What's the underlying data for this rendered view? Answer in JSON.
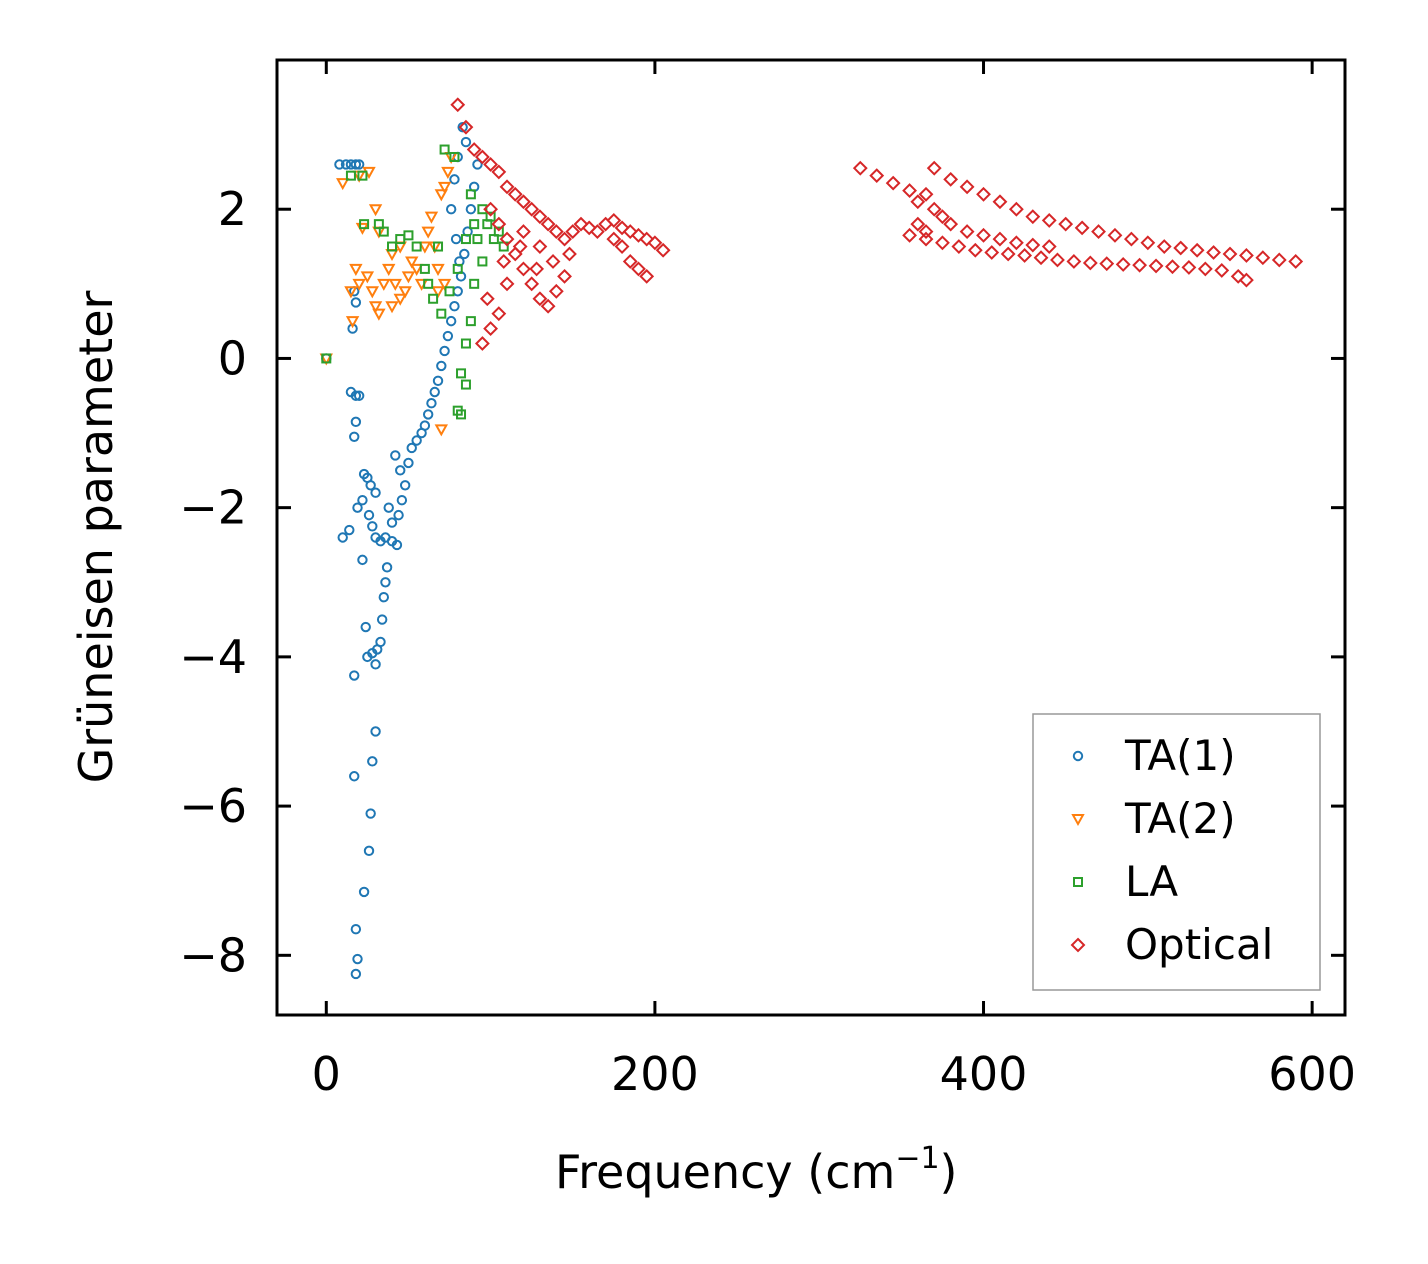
{
  "chart_data": {
    "type": "scatter",
    "title": "",
    "xlabel": "Frequency (cm",
    "xlabel_sup": "−1",
    "xlabel_close": ")",
    "ylabel": "Grüneisen parameter",
    "xlim": [
      -30,
      620
    ],
    "ylim": [
      -8.8,
      4.0
    ],
    "xticks": [
      0,
      200,
      400,
      600
    ],
    "yticks": [
      2,
      0,
      -2,
      -4,
      -6,
      -8
    ],
    "xtick_labels": [
      "0",
      "200",
      "400",
      "600"
    ],
    "ytick_labels": [
      "2",
      "0",
      "−2",
      "−4",
      "−6",
      "−8"
    ],
    "legend_position": "lower-right",
    "series": [
      {
        "name": "TA(1)",
        "marker": "circle",
        "color": "#1f77b4",
        "points": [
          [
            0,
            0
          ],
          [
            8,
            2.6
          ],
          [
            12,
            2.6
          ],
          [
            15,
            2.6
          ],
          [
            18,
            2.6
          ],
          [
            20,
            2.6
          ],
          [
            17,
            0.9
          ],
          [
            18,
            0.75
          ],
          [
            16,
            0.4
          ],
          [
            15,
            -0.45
          ],
          [
            18,
            -0.5
          ],
          [
            20,
            -0.5
          ],
          [
            18,
            -0.85
          ],
          [
            17,
            -1.05
          ],
          [
            19,
            -2.0
          ],
          [
            14,
            -2.3
          ],
          [
            10,
            -2.4
          ],
          [
            22,
            -1.9
          ],
          [
            23,
            -1.55
          ],
          [
            25,
            -1.6
          ],
          [
            27,
            -1.7
          ],
          [
            30,
            -1.8
          ],
          [
            26,
            -2.1
          ],
          [
            28,
            -2.25
          ],
          [
            30,
            -2.4
          ],
          [
            33,
            -2.45
          ],
          [
            36,
            -2.4
          ],
          [
            40,
            -2.45
          ],
          [
            43,
            -2.5
          ],
          [
            40,
            -2.2
          ],
          [
            38,
            -2.0
          ],
          [
            44,
            -2.1
          ],
          [
            46,
            -1.9
          ],
          [
            48,
            -1.7
          ],
          [
            45,
            -1.5
          ],
          [
            42,
            -1.3
          ],
          [
            50,
            -1.4
          ],
          [
            52,
            -1.2
          ],
          [
            55,
            -1.1
          ],
          [
            58,
            -1.0
          ],
          [
            60,
            -0.9
          ],
          [
            62,
            -0.75
          ],
          [
            64,
            -0.6
          ],
          [
            66,
            -0.45
          ],
          [
            68,
            -0.3
          ],
          [
            70,
            -0.1
          ],
          [
            72,
            0.1
          ],
          [
            74,
            0.3
          ],
          [
            76,
            0.5
          ],
          [
            78,
            0.7
          ],
          [
            80,
            0.9
          ],
          [
            82,
            1.1
          ],
          [
            84,
            1.4
          ],
          [
            86,
            1.7
          ],
          [
            88,
            2.0
          ],
          [
            90,
            2.3
          ],
          [
            92,
            2.6
          ],
          [
            85,
            2.9
          ],
          [
            83,
            3.1
          ],
          [
            80,
            2.7
          ],
          [
            78,
            2.4
          ],
          [
            76,
            2.0
          ],
          [
            79,
            1.6
          ],
          [
            81,
            1.3
          ],
          [
            36,
            -3.0
          ],
          [
            37,
            -2.8
          ],
          [
            35,
            -3.2
          ],
          [
            34,
            -3.5
          ],
          [
            33,
            -3.8
          ],
          [
            31,
            -3.9
          ],
          [
            30,
            -4.1
          ],
          [
            28,
            -3.95
          ],
          [
            25,
            -4.0
          ],
          [
            24,
            -3.6
          ],
          [
            17,
            -4.25
          ],
          [
            30,
            -5.0
          ],
          [
            28,
            -5.4
          ],
          [
            17,
            -5.6
          ],
          [
            27,
            -6.1
          ],
          [
            26,
            -6.6
          ],
          [
            23,
            -7.15
          ],
          [
            18,
            -7.65
          ],
          [
            19,
            -8.05
          ],
          [
            18,
            -8.25
          ],
          [
            22,
            -2.7
          ]
        ]
      },
      {
        "name": "TA(2)",
        "marker": "triangle-down",
        "color": "#ff7f0e",
        "points": [
          [
            0,
            0
          ],
          [
            10,
            2.35
          ],
          [
            20,
            2.45
          ],
          [
            26,
            2.5
          ],
          [
            22,
            1.75
          ],
          [
            30,
            2.0
          ],
          [
            32,
            1.7
          ],
          [
            18,
            1.2
          ],
          [
            25,
            1.1
          ],
          [
            15,
            0.9
          ],
          [
            20,
            1.0
          ],
          [
            28,
            0.9
          ],
          [
            30,
            0.7
          ],
          [
            32,
            0.6
          ],
          [
            35,
            1.0
          ],
          [
            38,
            1.2
          ],
          [
            40,
            1.4
          ],
          [
            42,
            1.0
          ],
          [
            45,
            0.8
          ],
          [
            48,
            0.9
          ],
          [
            50,
            1.1
          ],
          [
            52,
            1.3
          ],
          [
            55,
            1.2
          ],
          [
            58,
            1.0
          ],
          [
            60,
            1.5
          ],
          [
            62,
            1.7
          ],
          [
            64,
            1.9
          ],
          [
            66,
            1.5
          ],
          [
            68,
            1.2
          ],
          [
            70,
            2.2
          ],
          [
            72,
            2.3
          ],
          [
            74,
            2.5
          ],
          [
            76,
            2.7
          ],
          [
            72,
            1.0
          ],
          [
            68,
            0.9
          ],
          [
            70,
            -0.95
          ],
          [
            16,
            0.5
          ],
          [
            45,
            1.5
          ],
          [
            40,
            0.7
          ]
        ]
      },
      {
        "name": "LA",
        "marker": "square",
        "color": "#2ca02c",
        "points": [
          [
            0,
            0
          ],
          [
            15,
            2.45
          ],
          [
            22,
            2.45
          ],
          [
            23,
            1.8
          ],
          [
            32,
            1.8
          ],
          [
            35,
            1.7
          ],
          [
            40,
            1.5
          ],
          [
            45,
            1.6
          ],
          [
            50,
            1.65
          ],
          [
            55,
            1.5
          ],
          [
            60,
            1.2
          ],
          [
            62,
            1.0
          ],
          [
            65,
            0.8
          ],
          [
            70,
            0.6
          ],
          [
            75,
            0.9
          ],
          [
            80,
            1.2
          ],
          [
            85,
            1.6
          ],
          [
            90,
            1.8
          ],
          [
            95,
            2.0
          ],
          [
            100,
            1.9
          ],
          [
            105,
            1.7
          ],
          [
            108,
            1.5
          ],
          [
            95,
            1.3
          ],
          [
            90,
            1.0
          ],
          [
            88,
            0.5
          ],
          [
            85,
            0.2
          ],
          [
            82,
            -0.2
          ],
          [
            85,
            -0.35
          ],
          [
            80,
            -0.7
          ],
          [
            82,
            -0.75
          ],
          [
            72,
            2.8
          ],
          [
            78,
            2.7
          ],
          [
            68,
            1.5
          ],
          [
            92,
            1.6
          ],
          [
            98,
            1.8
          ],
          [
            102,
            1.6
          ],
          [
            88,
            2.2
          ]
        ]
      },
      {
        "name": "Optical",
        "marker": "diamond",
        "color": "#d62728",
        "points": [
          [
            80,
            3.4
          ],
          [
            85,
            3.1
          ],
          [
            90,
            2.8
          ],
          [
            95,
            2.7
          ],
          [
            100,
            2.6
          ],
          [
            105,
            2.5
          ],
          [
            110,
            2.3
          ],
          [
            115,
            2.2
          ],
          [
            120,
            2.1
          ],
          [
            125,
            2.0
          ],
          [
            130,
            1.9
          ],
          [
            135,
            1.8
          ],
          [
            140,
            1.7
          ],
          [
            145,
            1.6
          ],
          [
            150,
            1.7
          ],
          [
            155,
            1.8
          ],
          [
            160,
            1.75
          ],
          [
            165,
            1.7
          ],
          [
            170,
            1.8
          ],
          [
            175,
            1.85
          ],
          [
            180,
            1.75
          ],
          [
            185,
            1.7
          ],
          [
            190,
            1.65
          ],
          [
            195,
            1.6
          ],
          [
            200,
            1.55
          ],
          [
            205,
            1.45
          ],
          [
            190,
            1.2
          ],
          [
            185,
            1.3
          ],
          [
            180,
            1.5
          ],
          [
            175,
            1.6
          ],
          [
            195,
            1.1
          ],
          [
            100,
            2.0
          ],
          [
            105,
            1.8
          ],
          [
            110,
            1.6
          ],
          [
            115,
            1.4
          ],
          [
            120,
            1.2
          ],
          [
            125,
            1.0
          ],
          [
            130,
            0.8
          ],
          [
            135,
            0.7
          ],
          [
            140,
            0.9
          ],
          [
            145,
            1.1
          ],
          [
            130,
            1.5
          ],
          [
            120,
            1.7
          ],
          [
            110,
            1.0
          ],
          [
            105,
            0.6
          ],
          [
            100,
            0.4
          ],
          [
            95,
            0.2
          ],
          [
            98,
            0.8
          ],
          [
            108,
            1.3
          ],
          [
            118,
            1.5
          ],
          [
            128,
            1.2
          ],
          [
            138,
            1.3
          ],
          [
            148,
            1.4
          ],
          [
            325,
            2.55
          ],
          [
            335,
            2.45
          ],
          [
            345,
            2.35
          ],
          [
            355,
            2.25
          ],
          [
            360,
            2.1
          ],
          [
            365,
            2.2
          ],
          [
            370,
            2.55
          ],
          [
            380,
            2.4
          ],
          [
            390,
            2.3
          ],
          [
            400,
            2.2
          ],
          [
            410,
            2.1
          ],
          [
            420,
            2.0
          ],
          [
            430,
            1.9
          ],
          [
            440,
            1.85
          ],
          [
            450,
            1.8
          ],
          [
            460,
            1.75
          ],
          [
            470,
            1.7
          ],
          [
            480,
            1.65
          ],
          [
            490,
            1.6
          ],
          [
            500,
            1.55
          ],
          [
            510,
            1.5
          ],
          [
            520,
            1.48
          ],
          [
            530,
            1.45
          ],
          [
            540,
            1.42
          ],
          [
            550,
            1.4
          ],
          [
            560,
            1.38
          ],
          [
            570,
            1.35
          ],
          [
            580,
            1.32
          ],
          [
            590,
            1.3
          ],
          [
            355,
            1.65
          ],
          [
            365,
            1.6
          ],
          [
            375,
            1.55
          ],
          [
            385,
            1.5
          ],
          [
            395,
            1.45
          ],
          [
            405,
            1.42
          ],
          [
            415,
            1.4
          ],
          [
            425,
            1.38
          ],
          [
            435,
            1.35
          ],
          [
            445,
            1.32
          ],
          [
            455,
            1.3
          ],
          [
            465,
            1.28
          ],
          [
            475,
            1.27
          ],
          [
            485,
            1.26
          ],
          [
            495,
            1.25
          ],
          [
            505,
            1.24
          ],
          [
            515,
            1.23
          ],
          [
            525,
            1.22
          ],
          [
            535,
            1.2
          ],
          [
            545,
            1.18
          ],
          [
            555,
            1.1
          ],
          [
            560,
            1.05
          ],
          [
            370,
            2.0
          ],
          [
            375,
            1.9
          ],
          [
            380,
            1.8
          ],
          [
            390,
            1.7
          ],
          [
            400,
            1.65
          ],
          [
            410,
            1.6
          ],
          [
            420,
            1.55
          ],
          [
            430,
            1.52
          ],
          [
            440,
            1.5
          ],
          [
            360,
            1.8
          ],
          [
            365,
            1.7
          ]
        ]
      }
    ]
  }
}
